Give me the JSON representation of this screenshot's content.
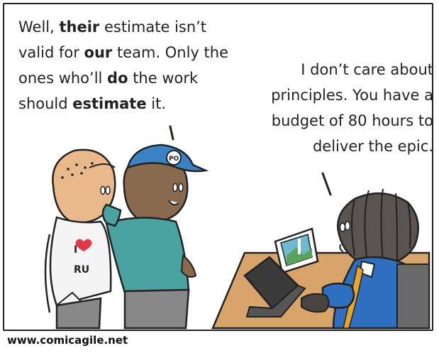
{
  "panel": {
    "left_speech": [
      {
        "text": "Well, ",
        "bold": false
      },
      {
        "text": "their",
        "bold": true
      },
      {
        "text": " estimate isn’t valid for ",
        "bold": false
      },
      {
        "text": "our",
        "bold": true
      },
      {
        "text": " team. Only the ones who’ll ",
        "bold": false
      },
      {
        "text": "do",
        "bold": true
      },
      {
        "text": " the work should ",
        "bold": false
      },
      {
        "text": "estimate",
        "bold": true
      },
      {
        "text": " it.",
        "bold": false
      }
    ],
    "right_speech": "I don’t care about principles. You have a budget of 80 hours to deliver the epic.",
    "shirt_text_top": "I",
    "shirt_text_bottom": "RU",
    "cap_logo": "PO"
  },
  "footer": {
    "url": "www.comicagile.net"
  },
  "colors": {
    "outline": "#222222",
    "skin_left": "#e9b98c",
    "skin_mid": "#8a6a4e",
    "skin_right": "#5a5450",
    "shirt_teal": "#4aa3a0",
    "shirt_white": "#f4f4f4",
    "cap_blue": "#3b82c4",
    "suit_blue": "#2f6fc0",
    "desk": "#d9a46a",
    "laptop": "#3a3a3a",
    "heart": "#e03a4a",
    "tie": "#e8a628"
  }
}
